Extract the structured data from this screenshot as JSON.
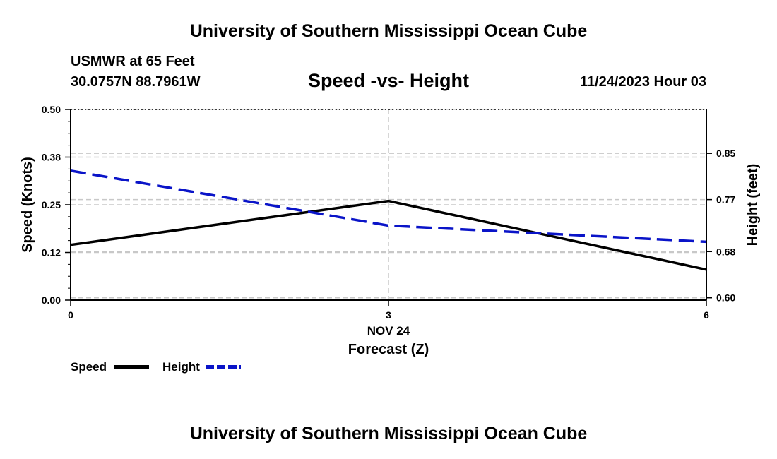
{
  "page": {
    "title_top": "University of Southern Mississippi Ocean Cube",
    "title_bottom": "University of Southern Mississippi Ocean Cube",
    "station_name": "USMWR at 65 Feet",
    "station_coords": "30.0757N  88.7961W",
    "timestamp": "11/24/2023 Hour 03"
  },
  "colors": {
    "speed": "#000000",
    "height": "#0a14c8",
    "grid": "#c8c8c8"
  },
  "chart_data": {
    "type": "line",
    "title": "Speed -vs- Height",
    "xlabel": "Forecast (Z)",
    "xlabel_date": "NOV 24",
    "ylabel_left": "Speed (Knots)",
    "ylabel_right": "Height (feet)",
    "x": [
      0,
      3,
      6
    ],
    "x_ticks": [
      "0",
      "3",
      "6"
    ],
    "xlim": [
      0,
      6
    ],
    "ylim_left": [
      0,
      0.5
    ],
    "left_ticks": [
      0.0,
      0.125,
      0.25,
      0.375,
      0.5
    ],
    "left_tick_labels": [
      "0.00",
      "0.12",
      "0.25",
      "0.38",
      "0.50"
    ],
    "ylim_right": [
      0.596,
      0.926
    ],
    "right_ticks": [
      0.6,
      0.68,
      0.77,
      0.85
    ],
    "right_tick_labels": [
      "0.60",
      "0.68",
      "0.77",
      "0.85"
    ],
    "series": [
      {
        "name": "Speed",
        "axis": "left",
        "style": "solid",
        "values": [
          0.145,
          0.26,
          0.08
        ]
      },
      {
        "name": "Height",
        "axis": "right",
        "style": "dashed",
        "values": [
          0.82,
          0.725,
          0.697
        ]
      }
    ],
    "legend": [
      {
        "label": "Speed",
        "style": "solid"
      },
      {
        "label": "Height",
        "style": "dashed"
      }
    ],
    "legend_position": "bottom-left"
  }
}
